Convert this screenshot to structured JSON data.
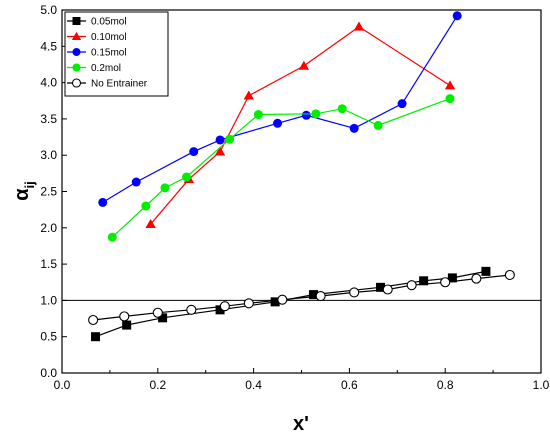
{
  "chart_data": {
    "type": "line",
    "xlabel": "x'",
    "ylabel": "α",
    "ylabel_sub": "ij",
    "xlim": [
      0.0,
      1.0
    ],
    "ylim": [
      0.0,
      5.0
    ],
    "xticks": [
      "0.0",
      "0.2",
      "0.4",
      "0.6",
      "0.8",
      "1.0"
    ],
    "yticks": [
      "0.0",
      "0.5",
      "1.0",
      "1.5",
      "2.0",
      "2.5",
      "3.0",
      "3.5",
      "4.0",
      "4.5",
      "5.0"
    ],
    "reference_line_y": 1.0,
    "legend_position": "top-left",
    "series": [
      {
        "name": "0.05mol",
        "marker": "square",
        "color": "#000000",
        "x": [
          0.07,
          0.135,
          0.21,
          0.33,
          0.445,
          0.525,
          0.665,
          0.755,
          0.815,
          0.885
        ],
        "y": [
          0.5,
          0.66,
          0.76,
          0.87,
          0.98,
          1.08,
          1.18,
          1.27,
          1.31,
          1.4
        ]
      },
      {
        "name": "0.10mol",
        "marker": "triangle",
        "color": "#ff0000",
        "x": [
          0.185,
          0.265,
          0.33,
          0.39,
          0.505,
          0.62,
          0.81
        ],
        "y": [
          2.05,
          2.67,
          3.05,
          3.82,
          4.23,
          4.77,
          3.96
        ]
      },
      {
        "name": "0.15mol",
        "marker": "circle",
        "color": "#0000ff",
        "x": [
          0.085,
          0.155,
          0.275,
          0.33,
          0.45,
          0.51,
          0.61,
          0.71,
          0.825
        ],
        "y": [
          2.35,
          2.63,
          3.05,
          3.21,
          3.44,
          3.55,
          3.37,
          3.71,
          4.92
        ]
      },
      {
        "name": "0.2mol",
        "marker": "circle",
        "color": "#00ee00",
        "x": [
          0.105,
          0.175,
          0.215,
          0.26,
          0.35,
          0.41,
          0.53,
          0.585,
          0.66,
          0.81
        ],
        "y": [
          1.87,
          2.3,
          2.55,
          2.7,
          3.22,
          3.56,
          3.57,
          3.64,
          3.41,
          3.78
        ]
      },
      {
        "name": "No Entrainer",
        "marker": "open-circle",
        "color": "#000000",
        "x": [
          0.065,
          0.13,
          0.2,
          0.27,
          0.34,
          0.39,
          0.46,
          0.54,
          0.61,
          0.68,
          0.73,
          0.8,
          0.865,
          0.935
        ],
        "y": [
          0.73,
          0.78,
          0.83,
          0.87,
          0.92,
          0.96,
          1.01,
          1.06,
          1.11,
          1.15,
          1.21,
          1.25,
          1.3,
          1.35
        ]
      }
    ]
  }
}
